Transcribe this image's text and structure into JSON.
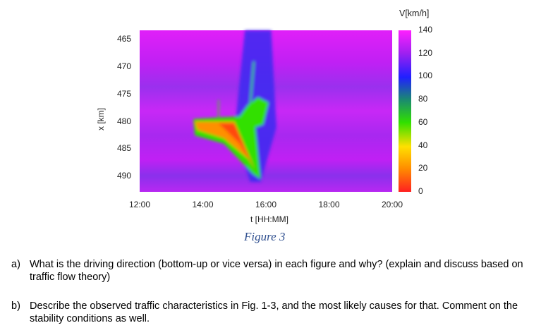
{
  "figure": {
    "caption": "Figure 3",
    "caption_color": "#2f4f8f"
  },
  "chart_data": {
    "type": "heatmap",
    "xlabel": "t [HH:MM]",
    "ylabel": "x [km]",
    "colorbar_label": "V[km/h]",
    "x_ticks": [
      "12:00",
      "14:00",
      "16:00",
      "18:00",
      "20:00"
    ],
    "x_range": [
      "12:00",
      "20:00"
    ],
    "y_ticks": [
      465,
      470,
      475,
      480,
      485,
      490
    ],
    "y_range": [
      463.3,
      492.8
    ],
    "y_inverted": true,
    "colorbar_ticks": [
      0,
      20,
      40,
      60,
      80,
      100,
      120,
      140
    ],
    "colorbar_range": [
      0,
      140
    ],
    "colormap": [
      "#ff2020",
      "#ff9a00",
      "#ffe000",
      "#30e000",
      "#1a8a70",
      "#2020ff",
      "#a020f0",
      "#ff20ff"
    ],
    "background_speed": 130,
    "congestion": [
      {
        "t": "13:45",
        "x": 480,
        "v": 20
      },
      {
        "t": "15:00",
        "x": 480,
        "v": 15
      },
      {
        "t": "15:40",
        "x": 489,
        "v": 15
      },
      {
        "t": "15:30",
        "x": 477,
        "v": 60
      },
      {
        "t": "15:37",
        "x": 469,
        "v": 70
      }
    ]
  },
  "questions": [
    {
      "label": "a)",
      "text": "What is the driving direction (bottom-up or vice versa) in each figure and why? (explain and discuss based on traffic flow theory)"
    },
    {
      "label": "b)",
      "text": "Describe the observed traffic characteristics in Fig. 1-3, and the most likely causes for that. Comment on the stability conditions as well."
    }
  ]
}
